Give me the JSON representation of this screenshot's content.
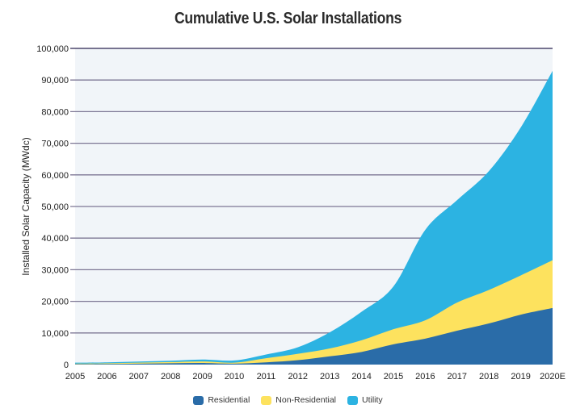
{
  "chart_data": {
    "type": "area",
    "stacked": true,
    "title": "Cumulative U.S. Solar Installations",
    "xlabel": "",
    "ylabel": "Installed Solar Capacity (MWdc)",
    "categories": [
      "2005",
      "2006",
      "2007",
      "2008",
      "2009",
      "2010",
      "2011",
      "2012",
      "2013",
      "2014",
      "2015",
      "2016",
      "2017",
      "2018",
      "2019",
      "2020E"
    ],
    "ylim": [
      0,
      100000
    ],
    "yticks": [
      0,
      10000,
      20000,
      30000,
      40000,
      50000,
      60000,
      70000,
      80000,
      90000,
      100000
    ],
    "ytick_labels": [
      "0",
      "10,000",
      "20,000",
      "30,000",
      "40,000",
      "50,000",
      "60,000",
      "70,000",
      "80,000",
      "90,000",
      "100,000"
    ],
    "grid": true,
    "legend_position": "bottom",
    "series": [
      {
        "name": "Residential",
        "color": "#2a6ca8",
        "values": [
          150,
          200,
          300,
          400,
          500,
          300,
          700,
          1400,
          2600,
          4000,
          6400,
          8200,
          10700,
          13000,
          15800,
          17900
        ]
      },
      {
        "name": "Non-Residential",
        "color": "#fde25e",
        "values": [
          150,
          200,
          300,
          400,
          500,
          300,
          1300,
          2000,
          2500,
          3700,
          4800,
          5800,
          8900,
          10600,
          12400,
          15100
        ]
      },
      {
        "name": "Utility",
        "color": "#2cb3e2",
        "values": [
          300,
          300,
          350,
          400,
          600,
          700,
          1200,
          2100,
          5100,
          9000,
          13500,
          28600,
          32400,
          37600,
          46800,
          59900
        ]
      }
    ]
  },
  "legend": {
    "items": [
      {
        "label": "Residential",
        "color": "#2a6ca8"
      },
      {
        "label": "Non-Residential",
        "color": "#fde25e"
      },
      {
        "label": "Utility",
        "color": "#2cb3e2"
      }
    ]
  },
  "colors": {
    "plot_background": "#f1f5f9",
    "gridline": "#7c7694",
    "top_gridline": "#2a2550"
  }
}
